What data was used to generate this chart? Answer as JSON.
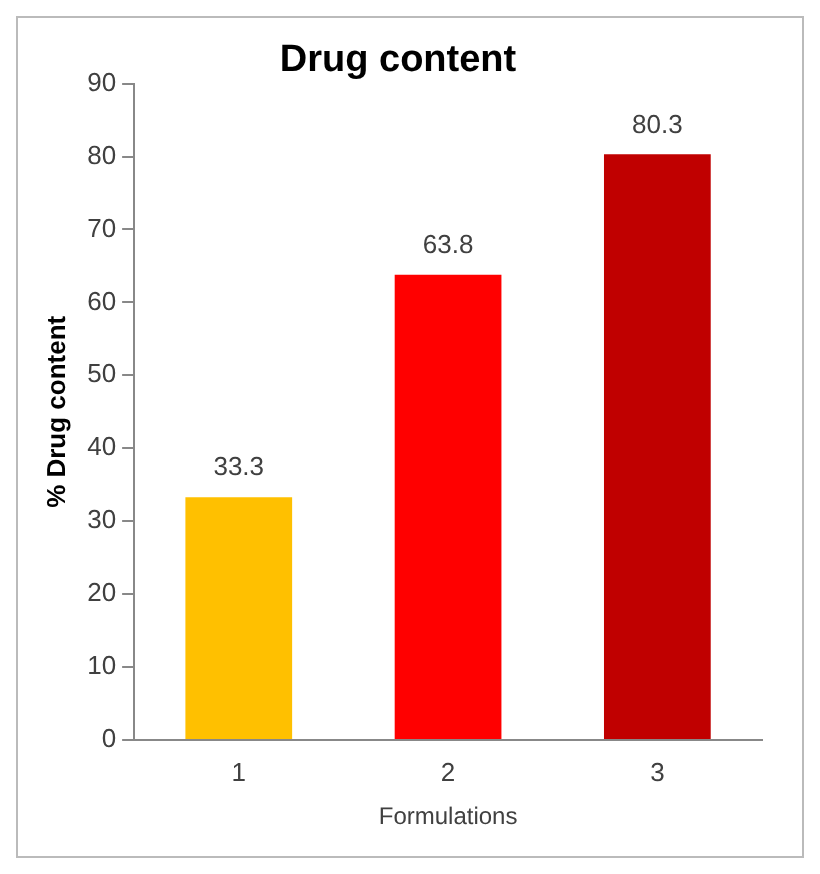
{
  "chart_data": {
    "type": "bar",
    "title": "Drug content",
    "xlabel": "Formulations",
    "ylabel": "% Drug content",
    "categories": [
      "1",
      "2",
      "3"
    ],
    "values": [
      33.3,
      63.8,
      80.3
    ],
    "colors": [
      "#ffc000",
      "#ff0000",
      "#c00000"
    ],
    "ylim": [
      0,
      90
    ],
    "yticks": [
      0,
      10,
      20,
      30,
      40,
      50,
      60,
      70,
      80,
      90
    ],
    "data_labels": true,
    "grid": false,
    "legend": false
  }
}
